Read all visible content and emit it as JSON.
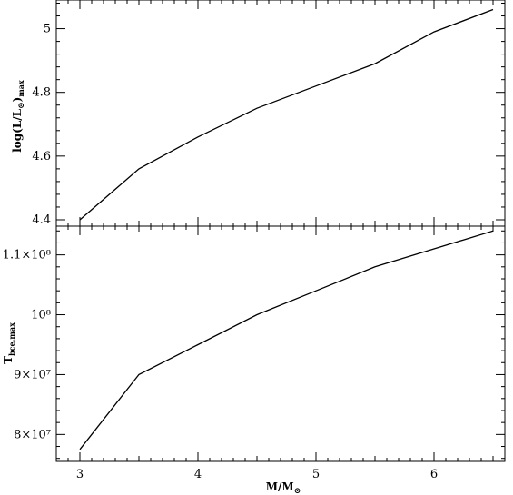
{
  "chart_data": [
    {
      "type": "line",
      "panel": "top",
      "title": "",
      "xlabel": "",
      "ylabel": "log(L/L⊙)max",
      "xlim": [
        2.8,
        6.6
      ],
      "ylim": [
        4.38,
        5.09
      ],
      "xticks": [
        3,
        4,
        5,
        6
      ],
      "xtick_labels": [
        "",
        "",
        "",
        ""
      ],
      "yticks": [
        4.4,
        4.6,
        4.8,
        5.0
      ],
      "ytick_labels": [
        "4.4",
        "4.6",
        "4.8",
        "5"
      ],
      "series": [
        {
          "x": [
            3.0,
            3.5,
            4.0,
            4.5,
            5.0,
            5.5,
            6.0,
            6.5
          ],
          "values": [
            4.4,
            4.56,
            4.66,
            4.75,
            4.82,
            4.89,
            4.99,
            5.06
          ]
        }
      ]
    },
    {
      "type": "line",
      "panel": "bottom",
      "title": "",
      "xlabel": "M/M⊙",
      "ylabel": "Tbce,max",
      "xlim": [
        2.8,
        6.6
      ],
      "ylim": [
        75500000,
        114800000
      ],
      "xticks": [
        3,
        4,
        5,
        6
      ],
      "xtick_labels": [
        "3",
        "4",
        "5",
        "6"
      ],
      "yticks": [
        80000000,
        90000000,
        100000000,
        110000000
      ],
      "ytick_labels": [
        "8×10⁷",
        "9×10⁷",
        "10⁸",
        "1.1×10⁸"
      ],
      "series": [
        {
          "x": [
            3.0,
            3.5,
            4.0,
            4.5,
            5.0,
            5.5,
            6.0,
            6.5
          ],
          "values": [
            77500000,
            90000000,
            95000000,
            100000000,
            104000000,
            108000000,
            111000000,
            114000000
          ]
        }
      ]
    }
  ],
  "axis_titles": {
    "top_ylabel_main": "log(L/L",
    "top_ylabel_sun": "⊙",
    "top_ylabel_tail": ")",
    "top_ylabel_sub": "max",
    "bottom_ylabel_main": "T",
    "bottom_ylabel_sub": "bce,max",
    "xlabel_main": "M/M",
    "xlabel_sun": "⊙"
  }
}
